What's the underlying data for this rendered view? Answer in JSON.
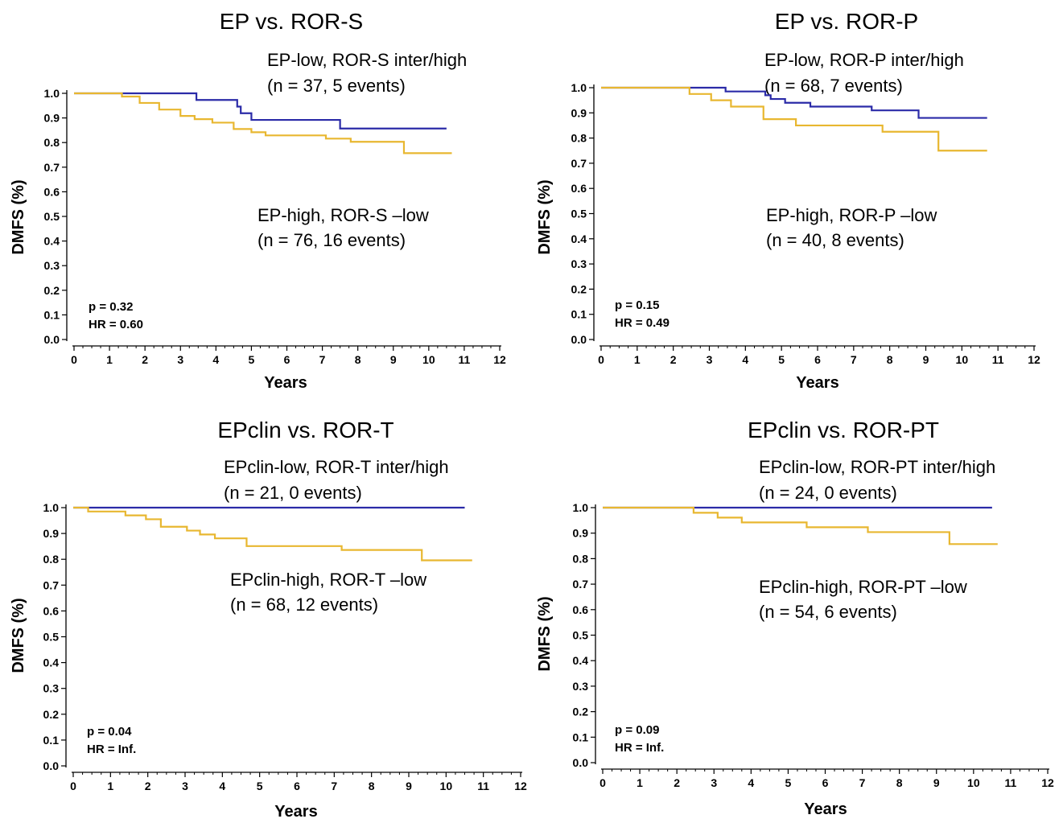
{
  "chart_data": [
    {
      "type": "line",
      "title": "EP vs. ROR-S",
      "xlabel": "Years",
      "ylabel": "DMFS (%)",
      "xlim": [
        0,
        12
      ],
      "ylim": [
        0,
        1.0
      ],
      "x_ticks": [
        "0",
        "1",
        "2",
        "3",
        "4",
        "5",
        "6",
        "7",
        "8",
        "9",
        "10",
        "11",
        "12"
      ],
      "y_ticks": [
        "0.0",
        "0.1",
        "0.2",
        "0.3",
        "0.4",
        "0.5",
        "0.6",
        "0.7",
        "0.8",
        "0.9",
        "1.0"
      ],
      "step": true,
      "series": [
        {
          "color": "#2b2ba8",
          "label_line1": "EP-low, ROR-S inter/high",
          "label_line2": "(n = 37, 5 events)",
          "x": [
            0,
            3.45,
            4.6,
            4.7,
            5.0,
            7.5,
            10.5
          ],
          "y": [
            1.0,
            0.973,
            0.946,
            0.919,
            0.892,
            0.857,
            0.857
          ]
        },
        {
          "color": "#e8b730",
          "label_line1": "EP-high, ROR-S –low",
          "label_line2": "(n = 76, 16 events)",
          "x": [
            0,
            1.35,
            1.85,
            2.4,
            3.0,
            3.4,
            3.9,
            4.5,
            5.0,
            5.4,
            7.1,
            7.8,
            9.3,
            10.65
          ],
          "y": [
            1.0,
            0.987,
            0.961,
            0.934,
            0.908,
            0.895,
            0.881,
            0.855,
            0.842,
            0.829,
            0.816,
            0.803,
            0.757,
            0.757
          ]
        }
      ],
      "stats_p": "p = 0.32",
      "stats_hr": "HR = 0.60"
    },
    {
      "type": "line",
      "title": "EP vs. ROR-P",
      "xlabel": "Years",
      "ylabel": "DMFS (%)",
      "xlim": [
        0,
        12
      ],
      "ylim": [
        0,
        1.0
      ],
      "x_ticks": [
        "0",
        "1",
        "2",
        "3",
        "4",
        "5",
        "6",
        "7",
        "8",
        "9",
        "10",
        "11",
        "12"
      ],
      "y_ticks": [
        "0.0",
        "0.1",
        "0.2",
        "0.3",
        "0.4",
        "0.5",
        "0.6",
        "0.7",
        "0.8",
        "0.9",
        "1.0"
      ],
      "step": true,
      "series": [
        {
          "color": "#2b2ba8",
          "label_line1": "EP-low, ROR-P inter/high",
          "label_line2": "(n = 68, 7 events)",
          "x": [
            0,
            3.45,
            4.55,
            4.7,
            5.1,
            5.8,
            7.5,
            8.8,
            10.7
          ],
          "y": [
            1.0,
            0.985,
            0.97,
            0.955,
            0.94,
            0.925,
            0.91,
            0.88,
            0.88
          ]
        },
        {
          "color": "#e8b730",
          "label_line1": "EP-high, ROR-P –low",
          "label_line2": "(n = 40, 8 events)",
          "x": [
            0,
            2.45,
            3.05,
            3.6,
            4.5,
            5.4,
            7.8,
            9.35,
            10.7
          ],
          "y": [
            1.0,
            0.975,
            0.95,
            0.925,
            0.875,
            0.85,
            0.825,
            0.75,
            0.75
          ]
        }
      ],
      "stats_p": "p = 0.15",
      "stats_hr": "HR = 0.49"
    },
    {
      "type": "line",
      "title": "EPclin vs. ROR-T",
      "xlabel": "Years",
      "ylabel": "DMFS (%)",
      "xlim": [
        0,
        12
      ],
      "ylim": [
        0,
        1.0
      ],
      "x_ticks": [
        "0",
        "1",
        "2",
        "3",
        "4",
        "5",
        "6",
        "7",
        "8",
        "9",
        "10",
        "11",
        "12"
      ],
      "y_ticks": [
        "0.0",
        "0.1",
        "0.2",
        "0.3",
        "0.4",
        "0.5",
        "0.6",
        "0.7",
        "0.8",
        "0.9",
        "1.0"
      ],
      "step": true,
      "series": [
        {
          "color": "#2b2ba8",
          "label_line1": "EPclin-low, ROR-T inter/high",
          "label_line2": "(n = 21, 0 events)",
          "x": [
            0,
            10.5
          ],
          "y": [
            1.0,
            1.0
          ]
        },
        {
          "color": "#e8b730",
          "label_line1": "EPclin-high, ROR-T –low",
          "label_line2": "(n = 68, 12 events)",
          "x": [
            0,
            0.4,
            1.4,
            1.95,
            2.35,
            3.05,
            3.4,
            3.8,
            4.65,
            7.2,
            9.35,
            10.7
          ],
          "y": [
            1.0,
            0.985,
            0.97,
            0.955,
            0.926,
            0.911,
            0.896,
            0.881,
            0.851,
            0.836,
            0.796,
            0.796
          ]
        }
      ],
      "stats_p": "p = 0.04",
      "stats_hr": "HR = Inf."
    },
    {
      "type": "line",
      "title": "EPclin vs. ROR-PT",
      "xlabel": "Years",
      "ylabel": "DMFS (%)",
      "xlim": [
        0,
        12
      ],
      "ylim": [
        0,
        1.0
      ],
      "x_ticks": [
        "0",
        "1",
        "2",
        "3",
        "4",
        "5",
        "6",
        "7",
        "8",
        "9",
        "10",
        "11",
        "12"
      ],
      "y_ticks": [
        "0.0",
        "0.1",
        "0.2",
        "0.3",
        "0.4",
        "0.5",
        "0.6",
        "0.7",
        "0.8",
        "0.9",
        "1.0"
      ],
      "step": true,
      "series": [
        {
          "color": "#2b2ba8",
          "label_line1": "EPclin-low, ROR-PT inter/high",
          "label_line2": "(n = 24, 0 events)",
          "x": [
            0,
            10.5
          ],
          "y": [
            1.0,
            1.0
          ]
        },
        {
          "color": "#e8b730",
          "label_line1": "EPclin-high, ROR-PT –low",
          "label_line2": "(n = 54, 6 events)",
          "x": [
            0,
            2.45,
            3.1,
            3.75,
            5.5,
            7.15,
            9.35,
            10.65
          ],
          "y": [
            1.0,
            0.98,
            0.961,
            0.942,
            0.923,
            0.904,
            0.857,
            0.857
          ]
        }
      ],
      "stats_p": "p = 0.09",
      "stats_hr": "HR = Inf."
    }
  ]
}
